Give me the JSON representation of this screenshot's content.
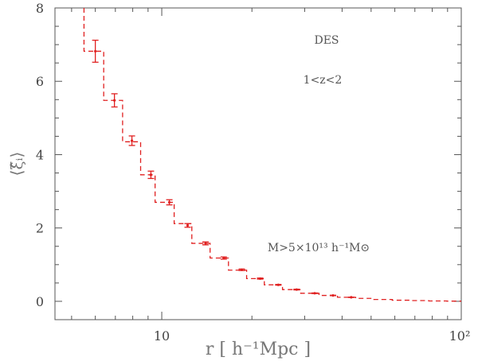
{
  "chart_data": {
    "type": "line",
    "xlabel": "r [ h⁻¹Mpc ]",
    "ylabel": "⟨ξ̂ᵢ⟩",
    "x_scale": "log",
    "xlim": [
      4.4,
      100
    ],
    "ylim": [
      -0.5,
      8
    ],
    "x_tick_labels": [
      "10",
      "10²"
    ],
    "y_tick_labels": [
      "0",
      "2",
      "4",
      "6",
      "8"
    ],
    "annotations": [
      "DES",
      "1<z<2",
      "M>5×10¹³ h⁻¹M⊙"
    ],
    "color": "#e02020",
    "step_edges": [
      5.5,
      6.4,
      7.4,
      8.5,
      9.5,
      11.0,
      12.6,
      14.5,
      16.7,
      19.2,
      22.0,
      25.3,
      29.1,
      33.5,
      38.6,
      44.4,
      51.1,
      58.8,
      67.6,
      77.8,
      89.5,
      100
    ],
    "step_values": [
      6.82,
      5.48,
      4.35,
      3.45,
      2.7,
      2.12,
      1.58,
      1.18,
      0.85,
      0.62,
      0.45,
      0.32,
      0.22,
      0.16,
      0.11,
      0.08,
      0.05,
      0.03,
      0.02,
      0.01,
      0.005
    ],
    "points": [
      {
        "x": 6.0,
        "y": 6.82,
        "err": 0.3
      },
      {
        "x": 6.95,
        "y": 5.48,
        "err": 0.18
      },
      {
        "x": 7.95,
        "y": 4.38,
        "err": 0.13
      },
      {
        "x": 9.2,
        "y": 3.45,
        "err": 0.1
      },
      {
        "x": 10.6,
        "y": 2.7,
        "err": 0.07
      },
      {
        "x": 12.2,
        "y": 2.07,
        "err": 0.05
      },
      {
        "x": 14.0,
        "y": 1.58,
        "err": 0.04
      },
      {
        "x": 16.1,
        "y": 1.18,
        "err": 0.03
      },
      {
        "x": 18.5,
        "y": 0.86,
        "err": 0.02
      },
      {
        "x": 21.3,
        "y": 0.62,
        "err": 0.015
      },
      {
        "x": 24.5,
        "y": 0.45,
        "err": 0.01
      },
      {
        "x": 28.2,
        "y": 0.32,
        "err": 0.01
      },
      {
        "x": 32.4,
        "y": 0.22,
        "err": 0.008
      },
      {
        "x": 37.3,
        "y": 0.16,
        "err": 0.006
      },
      {
        "x": 42.9,
        "y": 0.11,
        "err": 0.005
      }
    ]
  }
}
